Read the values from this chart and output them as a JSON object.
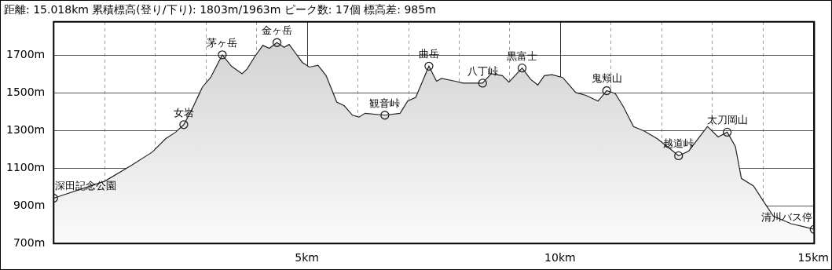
{
  "chart_data": {
    "type": "area",
    "title": "距離: 15.018km 累積標高(登り/下り): 1803m/1963m ピーク数: 17個 標高差: 985m",
    "series": [
      {
        "color": "#222222",
        "x": [
          0,
          1.01,
          1.54,
          1.95,
          2.21,
          2.41,
          2.57,
          2.73,
          2.94,
          3.1,
          3.33,
          3.51,
          3.72,
          3.82,
          3.97,
          4.13,
          4.26,
          4.41,
          4.55,
          4.65,
          4.76,
          4.91,
          5.05,
          5.22,
          5.38,
          5.59,
          5.74,
          5.9,
          6.03,
          6.15,
          6.54,
          6.84,
          6.99,
          7.15,
          7.41,
          7.56,
          7.66,
          7.93,
          8.08,
          8.47,
          8.64,
          8.86,
          8.99,
          9.25,
          9.42,
          9.56,
          9.69,
          9.84,
          10.05,
          10.31,
          10.51,
          10.75,
          10.92,
          11.09,
          11.25,
          11.45,
          11.67,
          11.92,
          12.18,
          12.34,
          12.54,
          12.91,
          13.12,
          13.3,
          13.46,
          13.58,
          13.82,
          14,
          14.21,
          14.56,
          15.018
        ],
        "values": [
          940,
          1030,
          1115,
          1185,
          1255,
          1290,
          1330,
          1410,
          1530,
          1580,
          1700,
          1640,
          1600,
          1625,
          1690,
          1750,
          1735,
          1765,
          1740,
          1755,
          1715,
          1660,
          1635,
          1645,
          1590,
          1450,
          1430,
          1380,
          1370,
          1390,
          1380,
          1390,
          1455,
          1475,
          1640,
          1560,
          1575,
          1560,
          1550,
          1550,
          1600,
          1590,
          1555,
          1630,
          1570,
          1540,
          1590,
          1595,
          1580,
          1500,
          1485,
          1455,
          1510,
          1495,
          1425,
          1320,
          1295,
          1255,
          1200,
          1165,
          1190,
          1320,
          1265,
          1290,
          1215,
          1045,
          1005,
          930,
          845,
          805,
          775
        ]
      },
      {
        "type": "scatter",
        "color": "#222222",
        "marker": "circle",
        "x": [
          0,
          2.57,
          3.33,
          4.41,
          6.54,
          7.41,
          8.47,
          9.25,
          10.92,
          12.34,
          13.3,
          15.018
        ],
        "values": [
          940,
          1330,
          1700,
          1765,
          1380,
          1640,
          1550,
          1630,
          1510,
          1165,
          1290,
          775
        ]
      }
    ],
    "annotations": [
      {
        "text": "深田記念公園",
        "x": 0,
        "y": 940
      },
      {
        "text": "女岩",
        "x": 2.57,
        "y": 1330
      },
      {
        "text": "茅ヶ岳",
        "x": 3.33,
        "y": 1700
      },
      {
        "text": "金ヶ岳",
        "x": 4.41,
        "y": 1765
      },
      {
        "text": "観音峠",
        "x": 6.54,
        "y": 1380
      },
      {
        "text": "曲岳",
        "x": 7.41,
        "y": 1640
      },
      {
        "text": "八丁峠",
        "x": 8.47,
        "y": 1550
      },
      {
        "text": "黒富士",
        "x": 9.25,
        "y": 1630
      },
      {
        "text": "鬼頬山",
        "x": 10.92,
        "y": 1510
      },
      {
        "text": "越道峠",
        "x": 12.34,
        "y": 1165
      },
      {
        "text": "太刀岡山",
        "x": 13.3,
        "y": 1290
      },
      {
        "text": "清川バス停",
        "x": 15.018,
        "y": 775
      }
    ],
    "xlim": [
      0,
      15.018
    ],
    "xticks": [
      {
        "value": 1,
        "label": null
      },
      {
        "value": 2,
        "label": null
      },
      {
        "value": 3,
        "label": null
      },
      {
        "value": 4,
        "label": null
      },
      {
        "value": 5,
        "label": "5km"
      },
      {
        "value": 6,
        "label": null
      },
      {
        "value": 7,
        "label": null
      },
      {
        "value": 8,
        "label": null
      },
      {
        "value": 9,
        "label": null
      },
      {
        "value": 10,
        "label": "10km"
      },
      {
        "value": 11,
        "label": null
      },
      {
        "value": 12,
        "label": null
      },
      {
        "value": 13,
        "label": null
      },
      {
        "value": 14,
        "label": null
      },
      {
        "value": 15,
        "label": "15km"
      }
    ],
    "ylim": [
      700,
      1875
    ],
    "yticks": [
      {
        "value": 700,
        "label": "700m"
      },
      {
        "value": 900,
        "label": "900m"
      },
      {
        "value": 1100,
        "label": "1100m"
      },
      {
        "value": 1300,
        "label": "1300m"
      },
      {
        "value": 1500,
        "label": "1500m"
      },
      {
        "value": 1700,
        "label": "1700m"
      }
    ],
    "grid": true,
    "legend": false
  }
}
